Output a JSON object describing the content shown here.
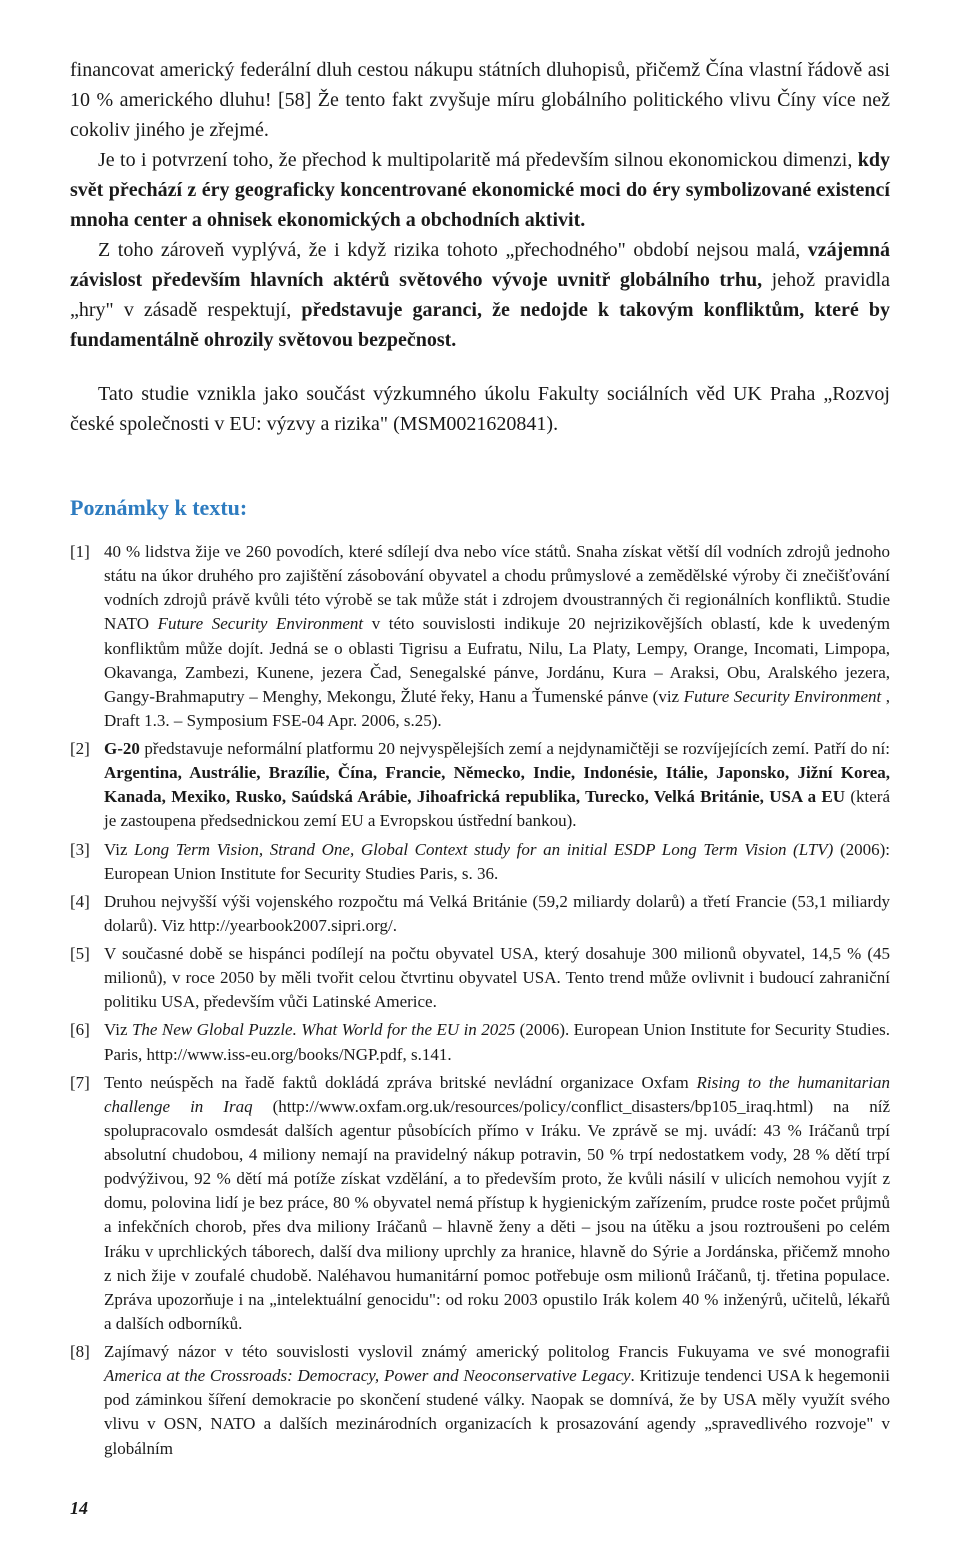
{
  "paragraphs": {
    "p1_part1": "financovat americký federální dluh cestou nákupu státních dluhopisů, přičemž Čína vlastní řádově asi 10 % amerického dluhu! [58] Že tento fakt zvyšuje míru globálního politického vlivu Číny více než cokoliv jiného je zřejmé.",
    "p2_indent1": "Je to i potvrzení toho, že přechod k multipolaritě má především silnou ekonomickou dimenzi, ",
    "p2_bold1": "kdy svět přechází z éry geograficky koncentrované ekonomické moci do éry symbolizované existencí mnoha center a ohnisek ekonomických a obchodních aktivit.",
    "p3_indent1": "Z toho zároveň vyplývá, že i když rizika tohoto „přechodného\" období nejsou malá, ",
    "p3_bold1": "vzájemná závislost především hlavních aktérů světového vývoje uvnitř globálního trhu,",
    "p3_mid": " jehož pravidla „hry\" v zásadě respektují, ",
    "p3_bold2": "představuje garanci, že nedojde k takovým konfliktům, které by fundamentálně ohrozily světovou bezpečnost.",
    "note_paragraph": "Tato studie vznikla jako součást výzkumného úkolu Fakulty sociálních věd UK Praha „Rozvoj české společnosti v EU: výzvy a rizika\" (MSM0021620841)."
  },
  "section_heading": "Poznámky k textu:",
  "notes": [
    {
      "num": "[1]",
      "parts": [
        {
          "text": "40 % lidstva žije ve 260 povodích, které sdílejí dva nebo více států. Snaha získat větší díl vodních zdrojů jednoho státu na úkor druhého pro zajištění zásobování obyvatel a chodu průmyslové a zemědělské výroby či znečišťování vodních zdrojů právě kvůli této výrobě se tak může stát i zdrojem dvoustranných či regionálních konfliktů. Studie NATO "
        },
        {
          "text": "Future Security Environment",
          "italic": true
        },
        {
          "text": " v této souvislosti indikuje 20 nejrizikovějších oblastí, kde k uvedeným konfliktům může dojít. Jedná se o oblasti Tigrisu a Eufratu, Nilu, La Platy, Lempy, Orange, Incomati, Limpopa, Okavanga, Zambezi, Kunene, jezera Čad, Senegalské pánve, Jordánu, Kura – Araksi, Obu, Aralského jezera, Gangy-Brahmaputry – Menghy, Mekongu, Žluté řeky, Hanu a Ťumenské pánve (viz "
        },
        {
          "text": "Future Security Environment",
          "italic": true
        },
        {
          "text": " , Draft 1.3. – Symposium FSE-04 Apr. 2006, s.25)."
        }
      ]
    },
    {
      "num": "[2]",
      "parts": [
        {
          "text": "G-20",
          "bold": true
        },
        {
          "text": " představuje neformální platformu 20 nejvyspělejších zemí a nejdynamičtěji se rozvíjejících zemí. Patří do ní: "
        },
        {
          "text": "Argentina, Austrálie, Brazílie, Čína, Francie, Německo, Indie, Indonésie, Itálie, Japonsko, Jižní Korea, Kanada, Mexiko, Rusko, Saúdská Arábie, Jihoafrická republika, Turecko, Velká Británie, USA a EU",
          "bold": true
        },
        {
          "text": " (která je zastoupena předsednickou zemí EU a Evropskou ústřední bankou)."
        }
      ]
    },
    {
      "num": "[3]",
      "parts": [
        {
          "text": "Viz "
        },
        {
          "text": "Long Term Vision, Strand One, Global Context study for an initial ESDP Long Term Vision (LTV)",
          "italic": true
        },
        {
          "text": " (2006): European Union Institute for Security Studies Paris, s. 36."
        }
      ]
    },
    {
      "num": "[4]",
      "parts": [
        {
          "text": "Druhou nejvyšší výši vojenského rozpočtu má Velká Británie (59,2 miliardy dolarů) a třetí Francie (53,1 miliardy dolarů). Viz http://yearbook2007.sipri.org/."
        }
      ]
    },
    {
      "num": "[5]",
      "parts": [
        {
          "text": "V současné době se hispánci podílejí na počtu obyvatel USA, který dosahuje 300 milionů obyvatel, 14,5 % (45 milionů), v roce 2050 by měli tvořit celou čtvrtinu obyvatel USA. Tento trend může ovlivnit i budoucí zahraniční politiku USA, především vůči Latinské Americe."
        }
      ]
    },
    {
      "num": "[6]",
      "parts": [
        {
          "text": "Viz "
        },
        {
          "text": "The New Global Puzzle. What World for the EU in 2025",
          "italic": true
        },
        {
          "text": " (2006). European Union Institute for Security Studies. Paris, http://www.iss-eu.org/books/NGP.pdf, s.141."
        }
      ]
    },
    {
      "num": "[7]",
      "parts": [
        {
          "text": "Tento neúspěch na řadě faktů dokládá zpráva britské nevládní organizace Oxfam "
        },
        {
          "text": "Rising to the humanitarian challenge in Iraq",
          "italic": true
        },
        {
          "text": " (http://www.oxfam.org.uk/resources/policy/conflict_disasters/bp105_iraq.html) na níž spolupracovalo osmdesát dalších agentur působících přímo v Iráku. Ve zprávě se mj. uvádí: 43 % Iráčanů trpí absolutní chudobou, 4 miliony nemají na pravidelný nákup potravin, 50 % trpí nedostatkem vody, 28 % dětí trpí podvýživou, 92 % dětí má potíže získat vzdělání, a to především proto, že kvůli násilí v ulicích nemohou vyjít z domu, polovina lidí je bez práce, 80 % obyvatel nemá přístup k hygienickým zařízením, prudce roste počet průjmů a infekčních chorob, přes dva miliony Iráčanů – hlavně ženy a děti – jsou na útěku a jsou roztroušeni po celém Iráku v uprchlických táborech, další dva miliony uprchly za hranice, hlavně do Sýrie a Jordánska, přičemž mnoho z nich žije v zoufalé chudobě. Naléhavou humanitární pomoc potřebuje osm milionů Iráčanů, tj. třetina populace. Zpráva upozorňuje i na „intelektuální genocidu\": od roku 2003 opustilo Irák kolem 40 % inženýrů, učitelů, lékařů a dalších odborníků."
        }
      ]
    },
    {
      "num": "[8]",
      "parts": [
        {
          "text": "Zajímavý názor v této souvislosti vyslovil známý americký politolog Francis Fukuyama ve své monografii "
        },
        {
          "text": "America at the Crossroads: Democracy, Power and Neoconservative Legacy",
          "italic": true
        },
        {
          "text": ". Kritizuje tendenci USA k hegemonii pod záminkou šíření demokracie po skončení studené války. Naopak se domnívá, že by USA měly využít svého vlivu v OSN, NATO a dalších mezinárodních organizacích k prosazování agendy „spravedlivého rozvoje\" v globálním"
        }
      ]
    }
  ],
  "page_number": "14"
}
